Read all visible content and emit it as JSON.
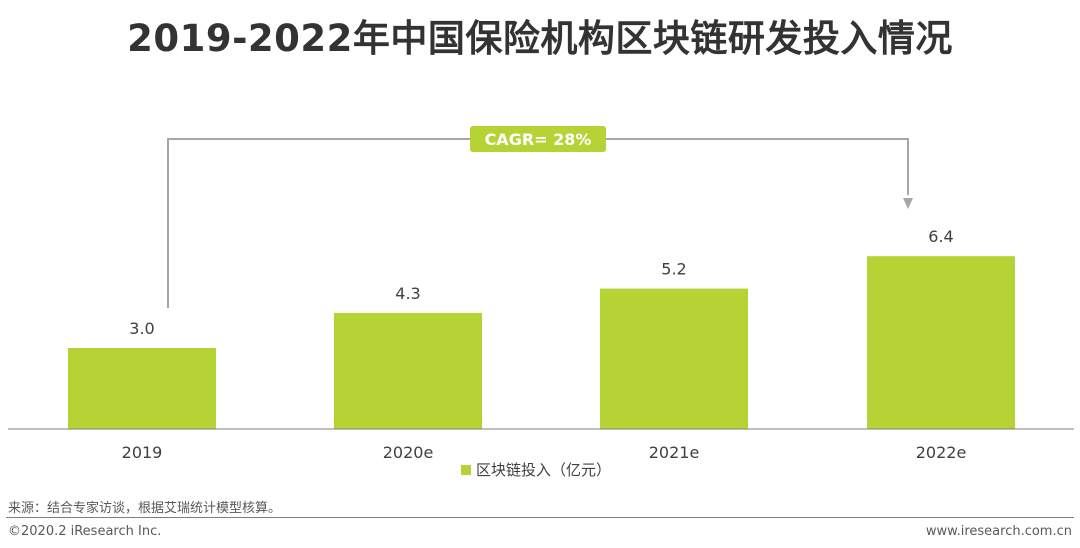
{
  "title": "2019-2022年中国保险机构区块链研发投入情况",
  "colors": {
    "bar": "#b5d334",
    "text": "#404040",
    "axis": "#7f7f7f",
    "annotation_line": "#a6a6a6",
    "badge_bg": "#b5d334",
    "badge_text": "#ffffff"
  },
  "chart_data": {
    "type": "bar",
    "categories": [
      "2019",
      "2020e",
      "2021e",
      "2022e"
    ],
    "series": [
      {
        "name": "区块链投入（亿元）",
        "values": [
          3.0,
          4.3,
          5.2,
          6.4
        ]
      }
    ],
    "data_labels": [
      "3.0",
      "4.3",
      "5.2",
      "6.4"
    ],
    "ylim": [
      0,
      8
    ],
    "grid": false,
    "legend_position": "bottom-center",
    "annotation": {
      "text": "CAGR= 28%",
      "from": "2019",
      "to": "2022e"
    }
  },
  "footer": {
    "source": "来源：结合专家访谈，根据艾瑞统计模型核算。",
    "copyright": "©2020.2 iResearch Inc.",
    "website": "www.iresearch.com.cn"
  }
}
